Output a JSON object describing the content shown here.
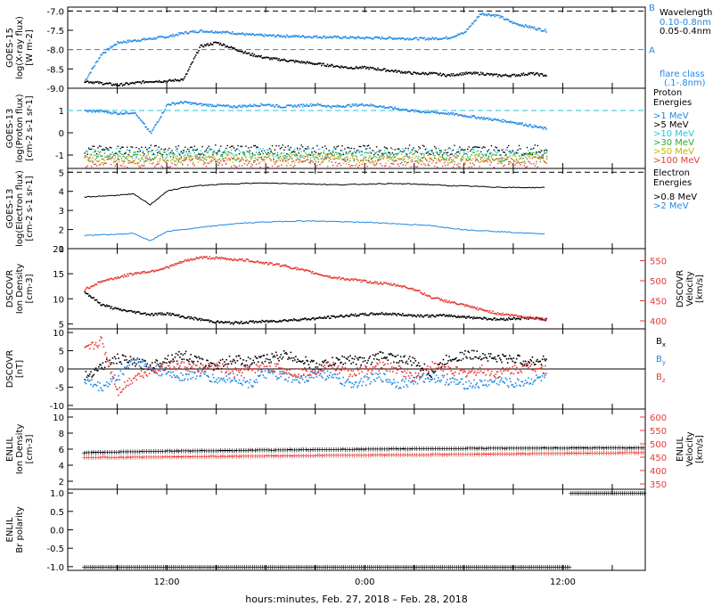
{
  "colors": {
    "black": "#000000",
    "blue": "#1e88e5",
    "cyan": "#26c6da",
    "green": "#2eaa2e",
    "yellow": "#c8b400",
    "orange": "#e08a00",
    "red": "#e53935",
    "xray_long": "#1e88e5",
    "xray_short": "#000000"
  },
  "chart_data": [
    {
      "type": "scatter",
      "panel": "goes15-xray",
      "ylabel": [
        "GOES-15",
        "log(X-ray flux)",
        "[W m-2]"
      ],
      "ylim": [
        -9.0,
        -6.9
      ],
      "yticks": [
        "-7.0",
        "-7.5",
        "-8.0",
        "-8.5",
        "-9.0"
      ],
      "right_labels": [
        "B",
        "A"
      ],
      "legend_title": "Wavelength",
      "series": [
        {
          "name": "0.10-0.8nm",
          "color": "#1e88e5",
          "x": [
            7,
            8,
            9,
            10,
            11,
            12,
            13,
            14,
            15,
            16,
            17,
            18,
            19,
            20,
            21,
            22,
            23,
            24,
            25,
            26,
            27,
            28,
            29,
            30,
            31,
            32,
            33,
            33.5,
            34,
            34.5,
            35
          ],
          "y": [
            -8.8,
            -8.1,
            -7.8,
            -7.75,
            -7.7,
            -7.65,
            -7.55,
            -7.5,
            -7.52,
            -7.55,
            -7.6,
            -7.62,
            -7.63,
            -7.64,
            -7.65,
            -7.66,
            -7.67,
            -7.68,
            -7.68,
            -7.69,
            -7.7,
            -7.7,
            -7.68,
            -7.55,
            -7.05,
            -7.1,
            -7.3,
            -7.35,
            -7.4,
            -7.45,
            -7.5
          ]
        },
        {
          "name": "0.05-0.4nm",
          "color": "#000000",
          "x": [
            7,
            8,
            9,
            10,
            11,
            12,
            13,
            14,
            15,
            16,
            17,
            18,
            19,
            20,
            21,
            22,
            23,
            24,
            25,
            26,
            27,
            28,
            29,
            30,
            31,
            32,
            33,
            34,
            35
          ],
          "y": [
            -8.8,
            -8.85,
            -8.9,
            -8.85,
            -8.8,
            -8.8,
            -8.75,
            -7.9,
            -7.8,
            -7.95,
            -8.1,
            -8.2,
            -8.25,
            -8.3,
            -8.35,
            -8.4,
            -8.45,
            -8.45,
            -8.5,
            -8.55,
            -8.6,
            -8.6,
            -8.65,
            -8.6,
            -8.6,
            -8.65,
            -8.65,
            -8.6,
            -8.65
          ]
        }
      ],
      "extra_legend": [
        "flare class",
        "(.1-.8nm)"
      ]
    },
    {
      "type": "scatter",
      "panel": "goes13-proton",
      "ylabel": [
        "GOES-13",
        "log(Proton flux)",
        "[cm-2 s-1 sr-1]"
      ],
      "ylim": [
        -1.6,
        2.0
      ],
      "yticks": [
        "1",
        "0",
        "-1"
      ],
      "legend_title": [
        "Proton",
        "Energies"
      ],
      "series": [
        {
          "name": ">1 MeV",
          "color": "#1e88e5",
          "x": [
            7,
            8,
            9,
            10,
            11,
            12,
            13,
            14,
            15,
            16,
            17,
            18,
            19,
            20,
            21,
            22,
            23,
            24,
            25,
            26,
            27,
            28,
            29,
            30,
            31,
            32,
            33,
            34,
            35
          ],
          "y": [
            1.0,
            1.0,
            0.9,
            0.95,
            0.0,
            1.3,
            1.4,
            1.3,
            1.25,
            1.2,
            1.25,
            1.3,
            1.2,
            1.25,
            1.3,
            1.2,
            1.25,
            1.3,
            1.2,
            1.1,
            1.0,
            0.95,
            0.9,
            0.8,
            0.7,
            0.6,
            0.5,
            0.35,
            0.2
          ]
        },
        {
          "name": ">5 MeV",
          "color": "#000000",
          "level": -0.75
        },
        {
          "name": ">10 MeV",
          "color": "#26c6da",
          "level": -0.9
        },
        {
          "name": ">30 MeV",
          "color": "#2eaa2e",
          "level": -1.05
        },
        {
          "name": ">50 MeV",
          "color": "#c8b400",
          "level": -1.15
        },
        {
          "name": ">100 MeV",
          "color": "#e53935",
          "level": -1.3
        }
      ],
      "reference_line": 1.0
    },
    {
      "type": "line",
      "panel": "goes13-electron",
      "ylabel": [
        "GOES-13",
        "log(Electron flux)",
        "[cm-2 s-1 sr-1]"
      ],
      "ylim": [
        1.0,
        5.2
      ],
      "yticks": [
        "5",
        "4",
        "3",
        "2",
        "1"
      ],
      "legend_title": [
        "Electron",
        "Energies"
      ],
      "series": [
        {
          "name": ">0.8 MeV",
          "color": "#000000",
          "x": [
            7,
            8,
            9,
            10,
            11,
            12,
            13,
            14,
            15,
            16,
            17,
            18,
            19,
            20,
            21,
            22,
            23,
            24,
            25,
            26,
            27,
            28,
            29,
            30,
            31,
            32,
            33,
            34,
            35
          ],
          "y": [
            3.7,
            3.75,
            3.8,
            3.85,
            3.3,
            4.0,
            4.2,
            4.3,
            4.35,
            4.4,
            4.42,
            4.43,
            4.42,
            4.4,
            4.38,
            4.35,
            4.35,
            4.38,
            4.4,
            4.4,
            4.38,
            4.35,
            4.3,
            4.28,
            4.25,
            4.22,
            4.2,
            4.2,
            4.2
          ]
        },
        {
          "name": ">2 MeV",
          "color": "#1e88e5",
          "x": [
            7,
            8,
            9,
            10,
            11,
            12,
            13,
            14,
            15,
            16,
            17,
            18,
            19,
            20,
            21,
            22,
            23,
            24,
            25,
            26,
            27,
            28,
            29,
            30,
            31,
            32,
            33,
            34,
            35
          ],
          "y": [
            1.7,
            1.72,
            1.75,
            1.8,
            1.4,
            1.9,
            2.0,
            2.1,
            2.2,
            2.3,
            2.35,
            2.4,
            2.42,
            2.45,
            2.45,
            2.42,
            2.4,
            2.38,
            2.35,
            2.3,
            2.25,
            2.2,
            2.1,
            2.0,
            1.95,
            1.9,
            1.85,
            1.8,
            1.78
          ]
        }
      ],
      "reference_line": 5.0
    },
    {
      "type": "scatter",
      "panel": "dscovr-plasma",
      "ylabel": [
        "DSCOVR",
        "Ion Density",
        "[cm-3]"
      ],
      "ylabel_right": [
        "DSCOVR",
        "Velocity",
        "[km/s]"
      ],
      "ylim": [
        4.0,
        20.0
      ],
      "yticks": [
        "20",
        "15",
        "10",
        "5"
      ],
      "ylim_right": [
        380,
        580
      ],
      "yticks_right": [
        "550",
        "500",
        "450",
        "400"
      ],
      "series": [
        {
          "name": "Ion Density",
          "color": "#000000",
          "x": [
            7,
            8,
            9,
            10,
            11,
            12,
            13,
            14,
            15,
            16,
            17,
            18,
            19,
            20,
            21,
            22,
            23,
            24,
            25,
            26,
            27,
            28,
            29,
            30,
            31,
            32,
            33,
            34,
            35
          ],
          "y": [
            11.5,
            9.0,
            8.0,
            7.5,
            7.0,
            7.2,
            6.5,
            6.0,
            5.5,
            5.3,
            5.5,
            5.6,
            5.8,
            6.0,
            6.2,
            6.5,
            6.8,
            7.0,
            7.2,
            7.0,
            6.8,
            6.7,
            6.8,
            6.5,
            6.3,
            6.0,
            6.2,
            6.3,
            6.0
          ]
        },
        {
          "name": "Velocity",
          "color": "#e53935",
          "axis": "right",
          "x": [
            7,
            8,
            9,
            10,
            11,
            12,
            13,
            14,
            15,
            16,
            17,
            18,
            19,
            20,
            21,
            22,
            23,
            24,
            25,
            26,
            27,
            28,
            29,
            30,
            31,
            32,
            33,
            34,
            35
          ],
          "y": [
            480,
            500,
            510,
            520,
            525,
            535,
            550,
            560,
            558,
            555,
            552,
            545,
            540,
            530,
            520,
            510,
            505,
            500,
            495,
            490,
            480,
            460,
            450,
            440,
            430,
            420,
            415,
            410,
            405
          ]
        }
      ]
    },
    {
      "type": "scatter",
      "panel": "dscovr-imf",
      "ylabel": [
        "DSCOVR",
        "[nT]"
      ],
      "ylim": [
        -11.0,
        11.0
      ],
      "yticks": [
        "10",
        "5",
        "0",
        "-5",
        "-10"
      ],
      "series": [
        {
          "name": "Bx",
          "color": "#000000",
          "x": [
            7,
            8,
            9,
            10,
            11,
            12,
            13,
            14,
            15,
            16,
            17,
            18,
            19,
            20,
            21,
            22,
            23,
            24,
            25,
            26,
            27,
            28,
            29,
            30,
            31,
            32,
            33,
            34,
            35
          ],
          "y": [
            -2,
            1,
            3,
            2,
            1,
            3,
            4,
            2,
            1,
            3,
            2,
            3,
            4,
            3,
            1,
            2,
            3,
            2,
            4,
            3,
            2,
            -1,
            3,
            4,
            4,
            3,
            3,
            2,
            3
          ]
        },
        {
          "name": "By",
          "color": "#1e88e5",
          "x": [
            7,
            8,
            9,
            10,
            11,
            12,
            13,
            14,
            15,
            16,
            17,
            18,
            19,
            20,
            21,
            22,
            23,
            24,
            25,
            26,
            27,
            28,
            29,
            30,
            31,
            32,
            33,
            34,
            35
          ],
          "y": [
            -3,
            -5,
            -2,
            3,
            0,
            -1,
            -2,
            -1,
            -3,
            -2,
            -4,
            -1,
            -2,
            -3,
            -1,
            -2,
            -4,
            -3,
            -2,
            -4,
            -3,
            -2,
            -3,
            -4,
            -4,
            -3,
            -4,
            -3,
            -2
          ]
        },
        {
          "name": "Bz",
          "color": "#e53935",
          "x": [
            7,
            8,
            9,
            10,
            11,
            12,
            13,
            14,
            15,
            16,
            17,
            18,
            19,
            20,
            21,
            22,
            23,
            24,
            25,
            26,
            27,
            28,
            29,
            30,
            31,
            32,
            33,
            34,
            35
          ],
          "y": [
            5,
            8,
            -6,
            -2,
            0,
            1,
            1,
            0,
            1,
            -1,
            0,
            1,
            0,
            -1,
            0,
            1,
            -1,
            0,
            1,
            0,
            -2,
            1,
            0,
            -1,
            0,
            -1,
            0,
            1,
            0
          ]
        }
      ],
      "reference_line": 0
    },
    {
      "type": "scatter",
      "panel": "enlil-plasma",
      "ylabel": [
        "ENLIL",
        "Ion Density",
        "[cm-3]"
      ],
      "ylabel_right": [
        "ENLIL",
        "Velocity",
        "[km/s]"
      ],
      "ylim": [
        1.0,
        11.0
      ],
      "yticks": [
        "10",
        "8",
        "6",
        "4",
        "2"
      ],
      "ylim_right": [
        330,
        630
      ],
      "yticks_right": [
        "600",
        "550",
        "500",
        "450",
        "400",
        "350"
      ],
      "series": [
        {
          "name": "Ion Density",
          "color": "#000000",
          "x": [
            7,
            12,
            17,
            22,
            27,
            32,
            37,
            41
          ],
          "y": [
            5.6,
            5.8,
            5.9,
            6.0,
            6.1,
            6.15,
            6.2,
            6.2
          ]
        },
        {
          "name": "Velocity",
          "color": "#e53935",
          "axis": "right",
          "x": [
            7,
            12,
            17,
            22,
            27,
            32,
            37,
            41
          ],
          "y": [
            450,
            452,
            455,
            458,
            460,
            463,
            466,
            468
          ]
        }
      ]
    },
    {
      "type": "scatter",
      "panel": "enlil-polarity",
      "ylabel": [
        "ENLIL",
        "Br polarity"
      ],
      "ylim": [
        -1.1,
        1.1
      ],
      "yticks": [
        "1.0",
        "0.5",
        "0.0",
        "-0.5",
        "-1.0"
      ],
      "series": [
        {
          "name": "Br polarity",
          "color": "#000000",
          "segments": [
            {
              "x": [
                7,
                36.5
              ],
              "y": -1.0
            },
            {
              "x": [
                36.5,
                41
              ],
              "y": 1.0
            }
          ]
        }
      ]
    }
  ],
  "x_axis": {
    "start_hour": 6.0,
    "end_hour": 41.0,
    "ticks": [
      {
        "hour": 9,
        "label": ""
      },
      {
        "hour": 12,
        "label": "12:00"
      },
      {
        "hour": 15,
        "label": ""
      },
      {
        "hour": 18,
        "label": ""
      },
      {
        "hour": 21,
        "label": ""
      },
      {
        "hour": 24,
        "label": "0:00"
      },
      {
        "hour": 27,
        "label": ""
      },
      {
        "hour": 30,
        "label": ""
      },
      {
        "hour": 33,
        "label": ""
      },
      {
        "hour": 36,
        "label": "12:00"
      },
      {
        "hour": 39,
        "label": ""
      }
    ],
    "title": "hours:minutes, Feb. 27, 2018 – Feb. 28, 2018"
  }
}
